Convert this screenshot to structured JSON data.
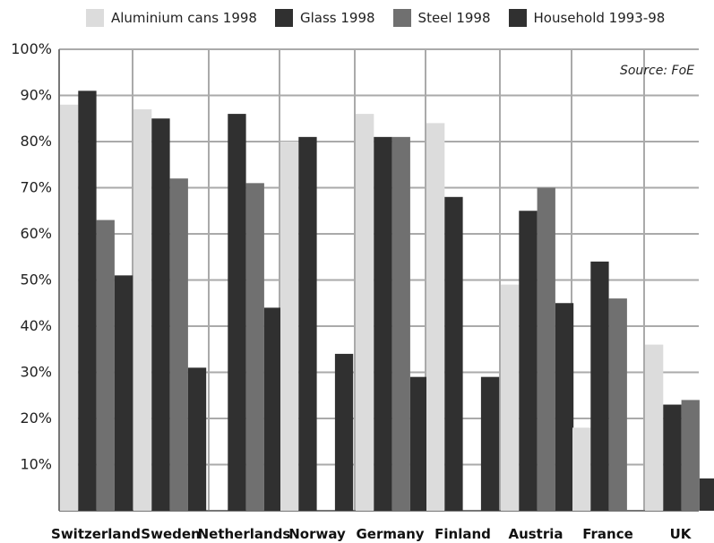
{
  "source": "Source: FoE",
  "colors": {
    "aluminium": "#dcdcdc",
    "glass": "#303030",
    "steel": "#707070",
    "household": "#303030",
    "grid": "#aaaaaa",
    "axis": "#777777"
  },
  "chart_data": {
    "type": "bar",
    "categories": [
      "Switzerland",
      "Sweden",
      "Netherlands",
      "Norway",
      "Germany",
      "Finland",
      "Austria",
      "France",
      "UK"
    ],
    "series": [
      {
        "name": "Aluminium cans 1998",
        "values": [
          88,
          87,
          null,
          80,
          86,
          84,
          49,
          18,
          36
        ]
      },
      {
        "name": "Glass 1998",
        "values": [
          91,
          85,
          86,
          81,
          81,
          68,
          65,
          54,
          23
        ]
      },
      {
        "name": "Steel 1998",
        "values": [
          63,
          72,
          71,
          null,
          81,
          null,
          70,
          46,
          24
        ]
      },
      {
        "name": "Household 1993-98",
        "values": [
          51,
          31,
          44,
          34,
          29,
          29,
          45,
          null,
          7
        ]
      }
    ],
    "yticks": [
      "10%",
      "20%",
      "30%",
      "40%",
      "50%",
      "60%",
      "70%",
      "80%",
      "90%",
      "100%"
    ],
    "ylim": [
      0,
      100
    ],
    "grid": true,
    "legend_position": "top"
  }
}
